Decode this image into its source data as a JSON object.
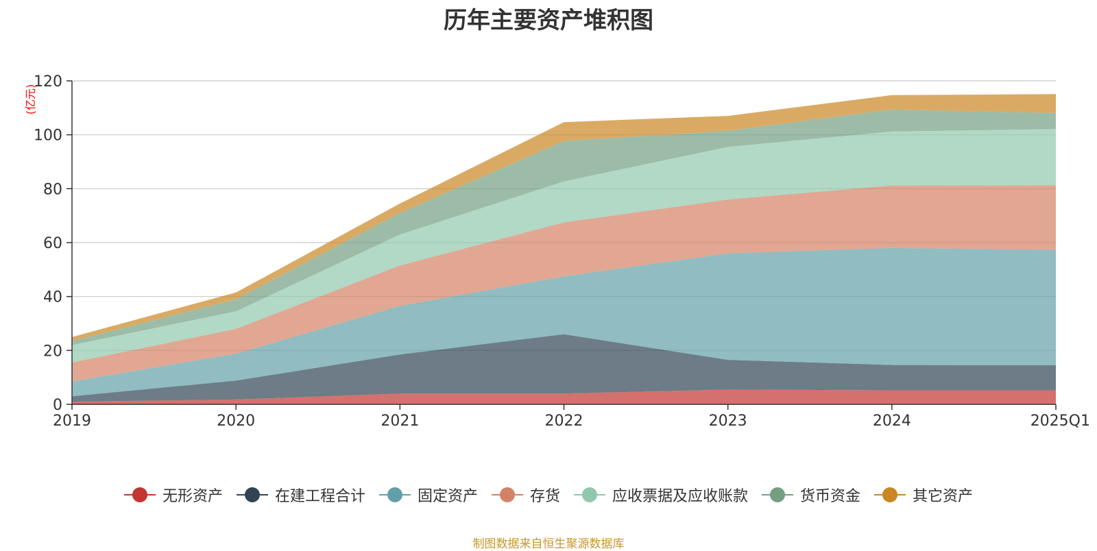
{
  "chart_data": {
    "type": "area",
    "stacked": true,
    "title": "历年主要资产堆积图",
    "ylabel": "(亿元)",
    "xlabel": "",
    "categories": [
      "2019",
      "2020",
      "2021",
      "2022",
      "2023",
      "2024",
      "2025Q1"
    ],
    "ylim": [
      0,
      120
    ],
    "yticks": [
      0,
      20,
      40,
      60,
      80,
      100,
      120
    ],
    "grid": true,
    "legend_position": "bottom",
    "series": [
      {
        "name": "无形资产",
        "color": "#c23531",
        "values": [
          1.0,
          1.8,
          4.0,
          4.0,
          5.5,
          5.2,
          5.2
        ]
      },
      {
        "name": "在建工程合计",
        "color": "#2f4554",
        "values": [
          2.0,
          7.0,
          14.5,
          22.0,
          11.0,
          9.4,
          9.3
        ]
      },
      {
        "name": "固定资产",
        "color": "#61a0a8",
        "values": [
          5.5,
          10.0,
          18.0,
          21.5,
          39.5,
          43.4,
          42.8
        ]
      },
      {
        "name": "存货",
        "color": "#d48265",
        "values": [
          7.0,
          9.2,
          15.0,
          20.0,
          20.0,
          23.2,
          24.0
        ]
      },
      {
        "name": "应收票据及应收账款",
        "color": "#91c7ae",
        "values": [
          6.5,
          6.5,
          11.5,
          15.2,
          19.5,
          20.0,
          20.8
        ]
      },
      {
        "name": "货币资金",
        "color": "#749f83",
        "values": [
          1.5,
          4.5,
          8.0,
          15.0,
          6.0,
          8.2,
          6.0
        ]
      },
      {
        "name": "其它资产",
        "color": "#ca8622",
        "values": [
          1.5,
          2.5,
          3.5,
          7.0,
          5.5,
          5.3,
          7.0
        ]
      }
    ]
  },
  "footer": {
    "source": "制图数据来自恒生聚源数据库"
  }
}
